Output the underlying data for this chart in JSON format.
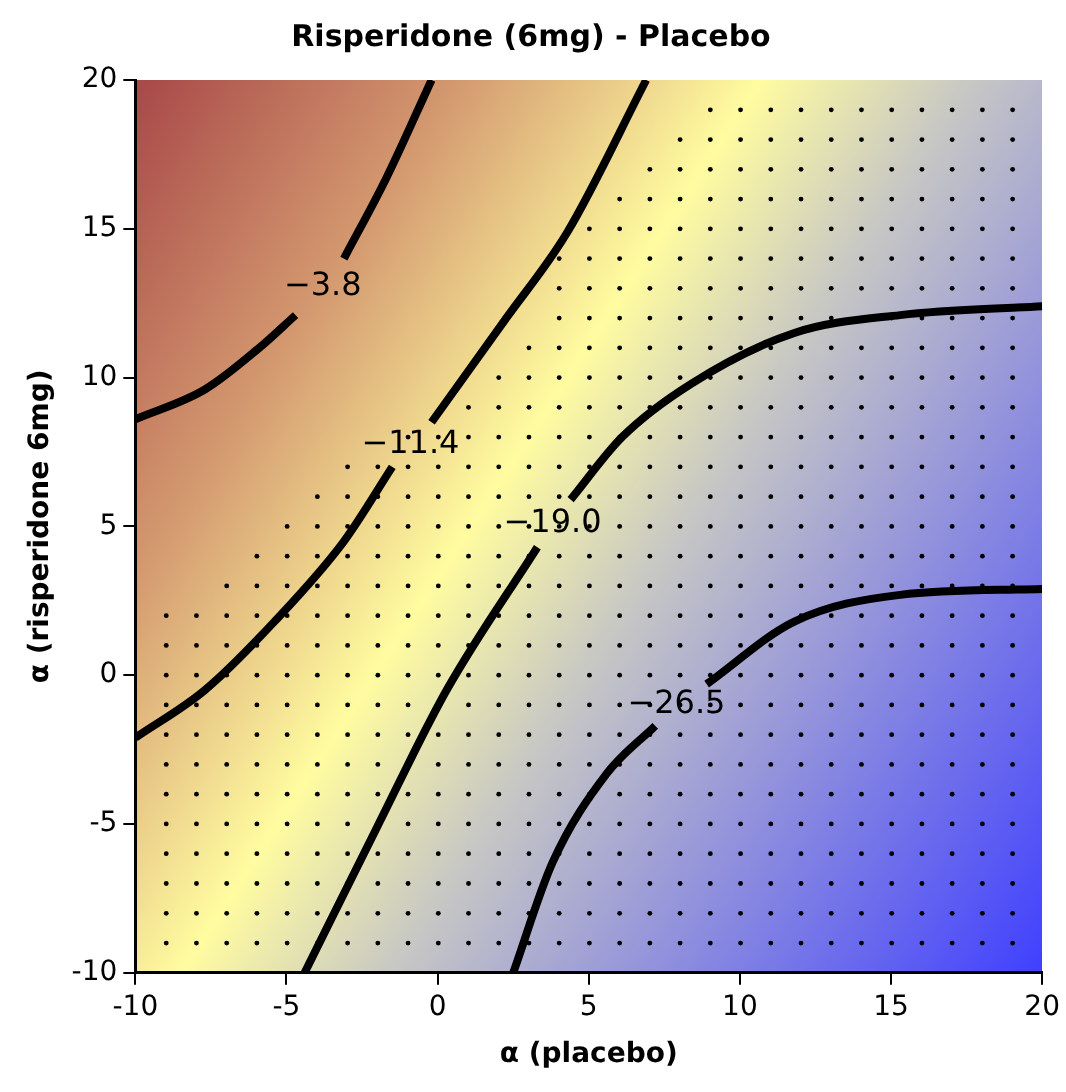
{
  "chart_data": {
    "type": "line",
    "title": "Risperidone (6mg) - Placebo",
    "xlabel": "α (placebo)",
    "ylabel": "α (risperidone 6mg)",
    "xlim": [
      -10,
      20
    ],
    "ylim": [
      -10,
      20
    ],
    "xticks": [
      -10,
      -5,
      0,
      5,
      10,
      15,
      20
    ],
    "yticks": [
      -10,
      -5,
      0,
      5,
      10,
      15,
      20
    ],
    "series": [
      {
        "color": "#000000",
        "x": [
          -10,
          -7.7,
          -5.9,
          -4.7,
          -3.8,
          -3.1,
          -1.7,
          -0.2
        ],
        "values": [
          8.6,
          9.6,
          11,
          12.1,
          null,
          14,
          16.7,
          20
        ]
      },
      {
        "color": "#000000",
        "x": [
          -10,
          -7.7,
          -5.4,
          -3.1,
          -1.5,
          -0.9,
          -0.2,
          2.2,
          4.3,
          6.9
        ],
        "values": [
          -2.1,
          -0.5,
          1.8,
          4.5,
          7,
          null,
          8.5,
          11.9,
          14.9,
          20
        ]
      },
      {
        "color": "#000000",
        "x": [
          -4.4,
          -2,
          0.3,
          3.3,
          3.8,
          4.4,
          6.1,
          8.4,
          11.8,
          15.3,
          20
        ],
        "values": [
          -10,
          -5.1,
          -0.5,
          4.3,
          null,
          5.9,
          8,
          9.8,
          11.5,
          12.1,
          12.4
        ]
      },
      {
        "color": "#000000",
        "x": [
          2.5,
          3.8,
          5.6,
          7.2,
          7.9,
          8.9,
          11.8,
          15.3,
          20
        ],
        "values": [
          -10,
          -6.3,
          -3.3,
          -1.7,
          null,
          -0.3,
          1.8,
          2.7,
          2.9
        ]
      }
    ],
    "annotations": [
      "−3.8",
      "−11.4",
      "−19.0",
      "−26.5"
    ]
  }
}
